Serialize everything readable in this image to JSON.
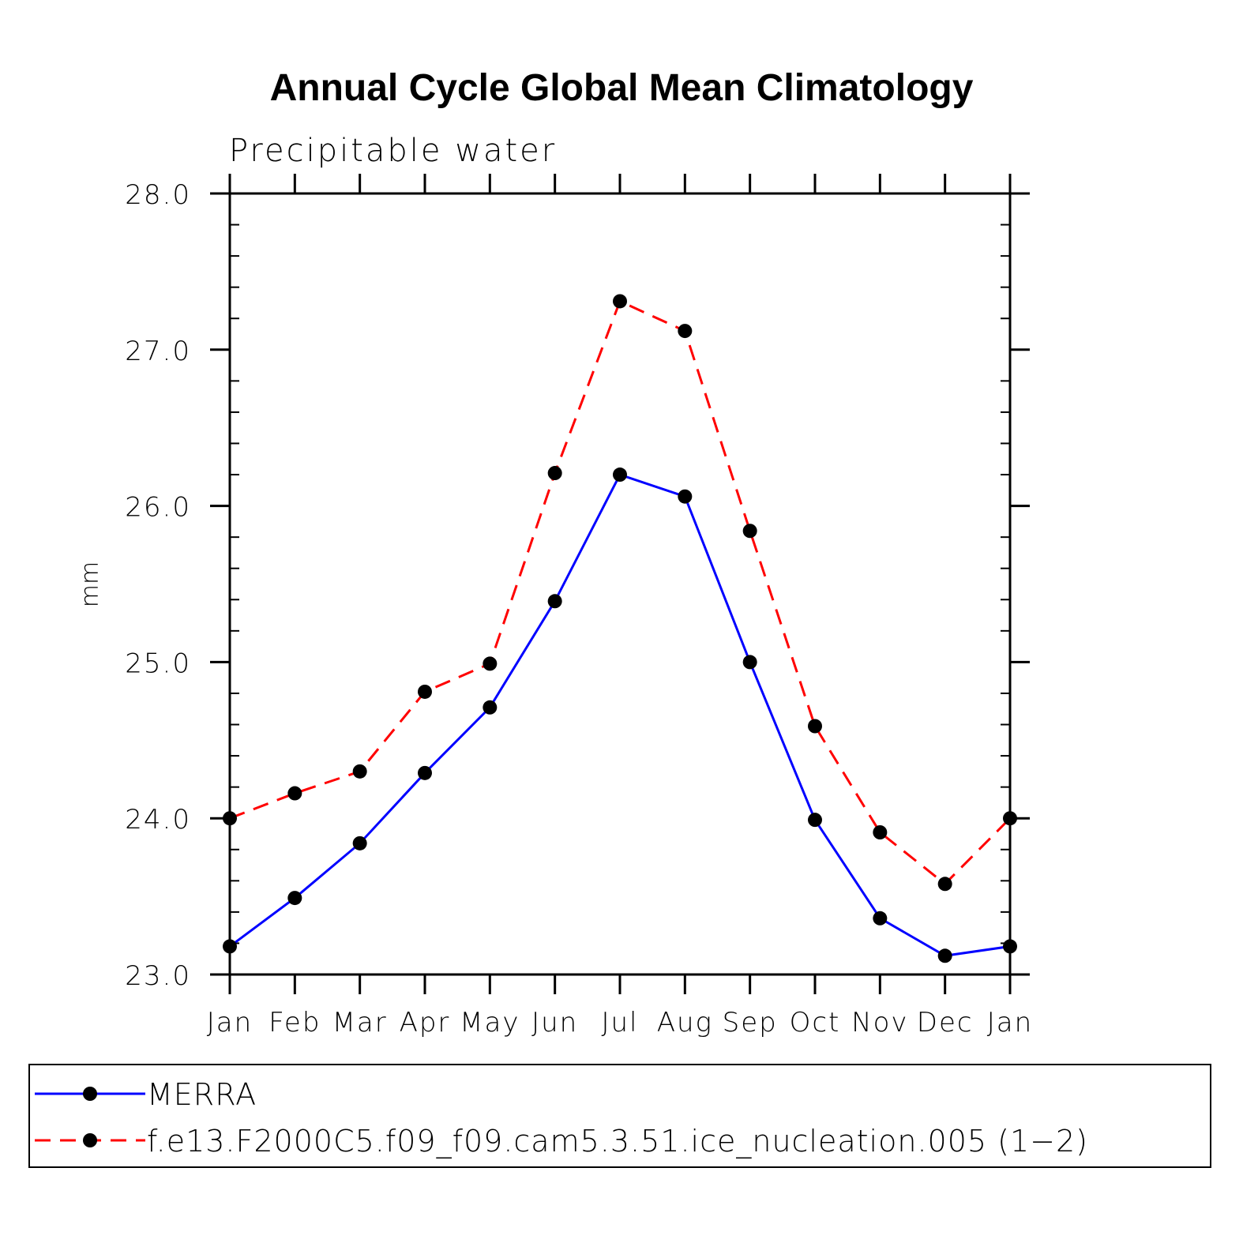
{
  "chart_data": {
    "type": "line",
    "title": "Annual Cycle Global Mean Climatology",
    "subtitle": "Precipitable water",
    "xlabel": "",
    "ylabel": "mm",
    "categories": [
      "Jan",
      "Feb",
      "Mar",
      "Apr",
      "May",
      "Jun",
      "Jul",
      "Aug",
      "Sep",
      "Oct",
      "Nov",
      "Dec",
      "Jan"
    ],
    "ylim": [
      23.0,
      28.0
    ],
    "yticks": [
      "23.0",
      "24.0",
      "25.0",
      "26.0",
      "27.0",
      "28.0"
    ],
    "ytick_values": [
      23.0,
      24.0,
      25.0,
      26.0,
      27.0,
      28.0
    ],
    "grid": false,
    "legend_position": "bottom",
    "series": [
      {
        "name": "MERRA",
        "color": "#0000ff",
        "dash": "solid",
        "values": [
          23.18,
          23.49,
          23.84,
          24.29,
          24.71,
          25.39,
          26.2,
          26.06,
          25.0,
          23.99,
          23.36,
          23.12,
          23.18
        ]
      },
      {
        "name": "f.e13.F2000C5.f09_f09.cam5.3.51.ice_nucleation.005 (1−2)",
        "color": "#ff0000",
        "dash": "dashed",
        "values": [
          24.0,
          24.16,
          24.3,
          24.81,
          24.99,
          26.21,
          27.31,
          27.12,
          25.84,
          24.59,
          23.91,
          23.58,
          24.0
        ]
      }
    ]
  }
}
